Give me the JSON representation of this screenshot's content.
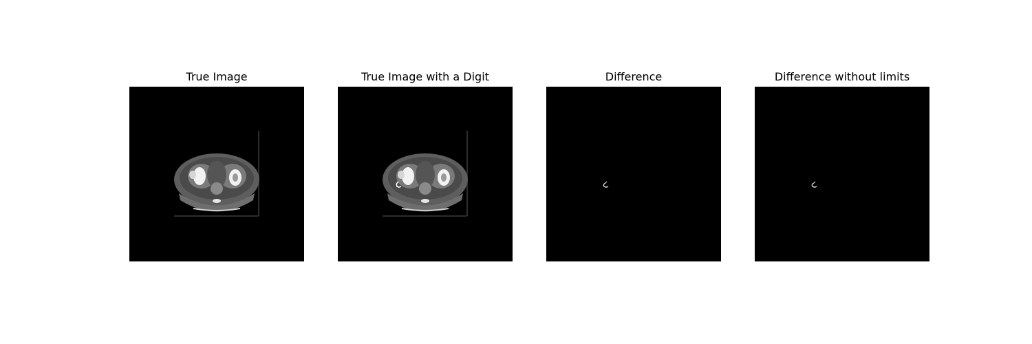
{
  "figure": {
    "background": "#ffffff",
    "panels": [
      {
        "id": "true-image",
        "title": "True Image",
        "content": "ct-scan"
      },
      {
        "id": "true-image-digit",
        "title": "True Image with a Digit",
        "content": "ct-scan-with-digit"
      },
      {
        "id": "difference",
        "title": "Difference",
        "content": "difference-digit"
      },
      {
        "id": "difference-no-limits",
        "title": "Difference without limits",
        "content": "difference-digit"
      }
    ]
  }
}
